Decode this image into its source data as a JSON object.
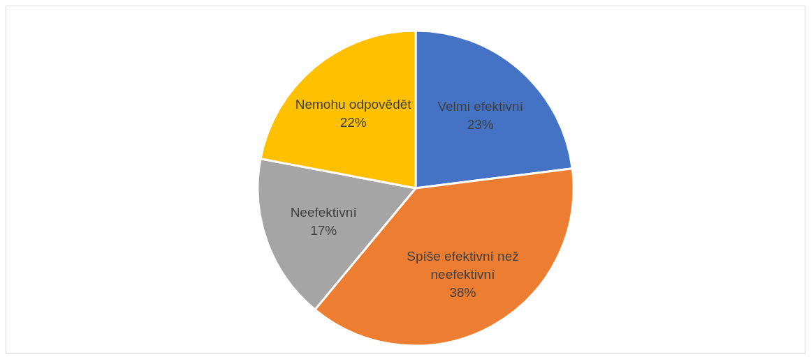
{
  "chart_data": {
    "type": "pie",
    "categories": [
      "Velmi efektivní",
      "Spíše efektivní než neefektivní",
      "Neefektivní",
      "Nemohu odpovědět"
    ],
    "values": [
      23,
      38,
      17,
      22
    ],
    "colors": [
      "#4472c4",
      "#ed7d31",
      "#a5a5a5",
      "#ffc000"
    ],
    "value_labels": [
      "23%",
      "38%",
      "17%",
      "22%"
    ]
  }
}
